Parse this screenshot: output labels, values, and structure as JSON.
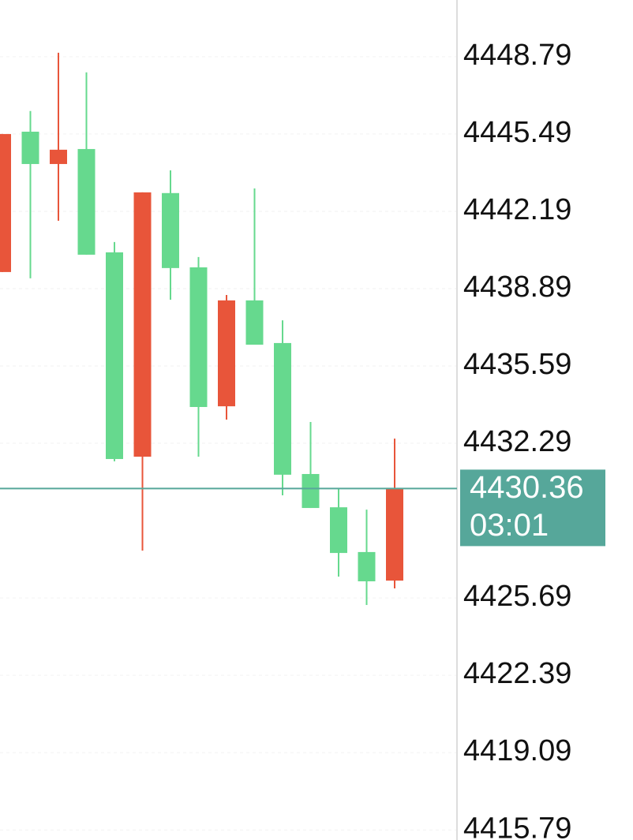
{
  "chart_data": {
    "type": "candlestick",
    "categories": [
      null,
      null,
      null,
      null,
      null,
      null,
      null,
      null,
      null,
      null,
      null,
      null,
      null,
      null,
      null
    ],
    "open": [
      4445.49,
      4444.21,
      4444.82,
      4440.34,
      4431.62,
      4443.0,
      4439.77,
      4433.84,
      4438.39,
      4436.5,
      4430.95,
      4429.53,
      4427.61,
      4426.4,
      4430.37
    ],
    "high": [
      4445.49,
      4446.47,
      4448.96,
      4448.12,
      4440.88,
      4443.0,
      4443.94,
      4440.24,
      4438.62,
      4443.17,
      4437.54,
      4433.2,
      4430.34,
      4429.46,
      4432.49
    ],
    "low": [
      4439.6,
      4439.33,
      4441.79,
      4440.34,
      4431.52,
      4427.71,
      4438.42,
      4431.72,
      4433.3,
      4436.5,
      4430.07,
      4429.53,
      4426.6,
      4425.39,
      4426.1
    ],
    "close": [
      4439.6,
      4445.59,
      4444.21,
      4444.85,
      4440.44,
      4431.72,
      4442.97,
      4439.8,
      4433.87,
      4438.39,
      4436.57,
      4430.98,
      4429.56,
      4427.65,
      4426.43
    ],
    "up_color": "#66d98e",
    "down_color": "#e8553a",
    "ylim": [
      4415.36,
      4451.21
    ],
    "yticks": [
      4448.79,
      4445.49,
      4442.19,
      4438.89,
      4435.59,
      4432.29,
      4425.69,
      4422.39,
      4419.09,
      4415.79
    ],
    "grid": true,
    "last_price": 4430.36,
    "last_price_color": "#56a79a",
    "countdown": "03:01"
  }
}
